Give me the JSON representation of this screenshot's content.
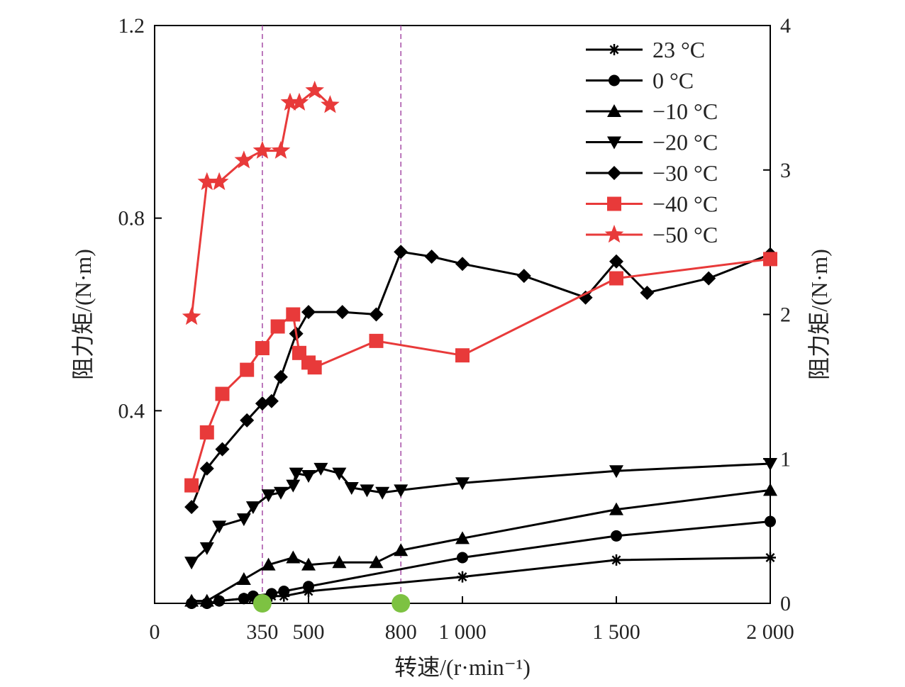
{
  "chart_data": {
    "type": "line",
    "xlabel": "转速/(r·min⁻¹)",
    "ylabel_left": "阻力矩/(N·m)",
    "ylabel_right": "阻力矩/(N·m)",
    "x_ticks": [
      {
        "value": 0,
        "label": "0"
      },
      {
        "value": 350,
        "label": "350"
      },
      {
        "value": 500,
        "label": "500"
      },
      {
        "value": 800,
        "label": "800"
      },
      {
        "value": 1000,
        "label": "1 000"
      },
      {
        "value": 1500,
        "label": "1 500"
      },
      {
        "value": 2000,
        "label": "2 000"
      }
    ],
    "y_left_ticks": [
      {
        "value": 0.4,
        "label": "0.4"
      },
      {
        "value": 0.8,
        "label": "0.8"
      },
      {
        "value": 1.2,
        "label": "1.2"
      }
    ],
    "y_right_ticks": [
      {
        "value": 0,
        "label": "0"
      },
      {
        "value": 1,
        "label": "1"
      },
      {
        "value": 2,
        "label": "2"
      },
      {
        "value": 3,
        "label": "3"
      },
      {
        "value": 4,
        "label": "4"
      }
    ],
    "ylim_left": [
      0,
      1.2
    ],
    "ylim_right": [
      0,
      4
    ],
    "vlines": [
      350,
      800
    ],
    "vline_color": "#a64ca6",
    "markers_on_axis": [
      350,
      800
    ],
    "marker_color": "#7dc242",
    "grid": false,
    "legend_position": "top-right",
    "series": [
      {
        "name": "23 °C",
        "color": "#000000",
        "marker": "asterisk",
        "x": [
          120,
          170,
          210,
          290,
          320,
          380,
          420,
          500,
          1000,
          1500,
          2000
        ],
        "y": [
          0.0,
          0.0,
          0.005,
          0.01,
          0.01,
          0.015,
          0.015,
          0.025,
          0.055,
          0.09,
          0.095
        ]
      },
      {
        "name": "0 °C",
        "color": "#000000",
        "marker": "circle",
        "x": [
          120,
          170,
          210,
          290,
          320,
          380,
          420,
          500,
          1000,
          1500,
          2000
        ],
        "y": [
          0.0,
          0.0,
          0.005,
          0.01,
          0.015,
          0.02,
          0.025,
          0.035,
          0.095,
          0.14,
          0.17
        ]
      },
      {
        "name": "−10 °C",
        "color": "#000000",
        "marker": "triangle-up",
        "x": [
          120,
          170,
          290,
          370,
          450,
          500,
          600,
          720,
          800,
          1000,
          1500,
          2000
        ],
        "y": [
          0.005,
          0.005,
          0.05,
          0.08,
          0.095,
          0.08,
          0.085,
          0.085,
          0.11,
          0.135,
          0.195,
          0.235
        ]
      },
      {
        "name": "−20 °C",
        "color": "#000000",
        "marker": "triangle-down",
        "x": [
          120,
          170,
          210,
          290,
          320,
          370,
          410,
          450,
          460,
          500,
          540,
          600,
          640,
          690,
          740,
          800,
          1000,
          1500,
          2000
        ],
        "y": [
          0.085,
          0.115,
          0.16,
          0.175,
          0.2,
          0.225,
          0.23,
          0.245,
          0.27,
          0.265,
          0.28,
          0.27,
          0.24,
          0.235,
          0.23,
          0.235,
          0.25,
          0.275,
          0.29
        ]
      },
      {
        "name": "−30 °C",
        "color": "#000000",
        "marker": "diamond",
        "x": [
          120,
          170,
          220,
          300,
          350,
          380,
          410,
          460,
          500,
          610,
          720,
          800,
          900,
          1000,
          1200,
          1400,
          1500,
          1600,
          1800,
          2000
        ],
        "y": [
          0.2,
          0.28,
          0.32,
          0.38,
          0.415,
          0.42,
          0.47,
          0.56,
          0.605,
          0.605,
          0.6,
          0.73,
          0.72,
          0.705,
          0.68,
          0.635,
          0.71,
          0.645,
          0.675,
          0.725
        ]
      },
      {
        "name": "−40 °C",
        "color": "#e83a3a",
        "marker": "square",
        "x": [
          120,
          170,
          220,
          300,
          350,
          400,
          450,
          470,
          500,
          520,
          720,
          1000,
          1500,
          2000
        ],
        "y": [
          0.245,
          0.355,
          0.435,
          0.485,
          0.53,
          0.575,
          0.6,
          0.52,
          0.5,
          0.49,
          0.545,
          0.515,
          0.675,
          0.715
        ]
      },
      {
        "name": "−50 °C",
        "color": "#e83a3a",
        "marker": "star",
        "x": [
          120,
          170,
          210,
          290,
          350,
          410,
          440,
          470,
          520,
          570
        ],
        "y": [
          0.595,
          0.875,
          0.875,
          0.92,
          0.94,
          0.94,
          1.04,
          1.04,
          1.065,
          1.035
        ]
      }
    ]
  }
}
